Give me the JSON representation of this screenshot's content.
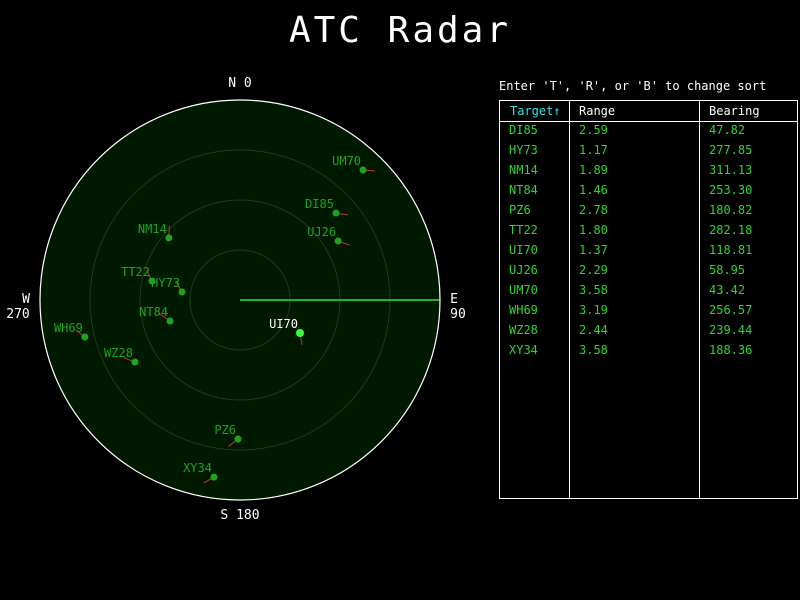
{
  "title": "ATC Radar",
  "compass": {
    "north": "N 0",
    "east": "E",
    "east_deg": "90",
    "south": "S 180",
    "west": "W",
    "west_deg": "270"
  },
  "instructions": "Enter 'T', 'R', or 'B' to change sort",
  "table": {
    "headers": {
      "target": "Target↑",
      "range": "Range",
      "bearing": "Bearing"
    },
    "sorted_by": "target",
    "rows": [
      {
        "target": "DI85",
        "range": "2.59",
        "bearing": "47.82"
      },
      {
        "target": "HY73",
        "range": "1.17",
        "bearing": "277.85"
      },
      {
        "target": "NM14",
        "range": "1.89",
        "bearing": "311.13"
      },
      {
        "target": "NT84",
        "range": "1.46",
        "bearing": "253.30"
      },
      {
        "target": "PZ6",
        "range": "2.78",
        "bearing": "180.82"
      },
      {
        "target": "TT22",
        "range": "1.80",
        "bearing": "282.18"
      },
      {
        "target": "UI70",
        "range": "1.37",
        "bearing": "118.81"
      },
      {
        "target": "UJ26",
        "range": "2.29",
        "bearing": "58.95"
      },
      {
        "target": "UM70",
        "range": "3.58",
        "bearing": "43.42"
      },
      {
        "target": "WH69",
        "range": "3.19",
        "bearing": "256.57"
      },
      {
        "target": "WZ28",
        "range": "2.44",
        "bearing": "239.44"
      },
      {
        "target": "XY34",
        "range": "3.58",
        "bearing": "188.36"
      }
    ]
  },
  "radar": {
    "max_range": 4,
    "sweep_bearing": 90,
    "highlighted": "UI70",
    "colors": {
      "scope_bg": "#001a00",
      "ring": "#1e3a1e",
      "sweep": "#2ee62e",
      "target": "#1fa31f",
      "target_bright": "#39ff39",
      "label": "#1fa31f",
      "label_dim": "#0e4a0e",
      "trail": "#c0392b"
    }
  }
}
